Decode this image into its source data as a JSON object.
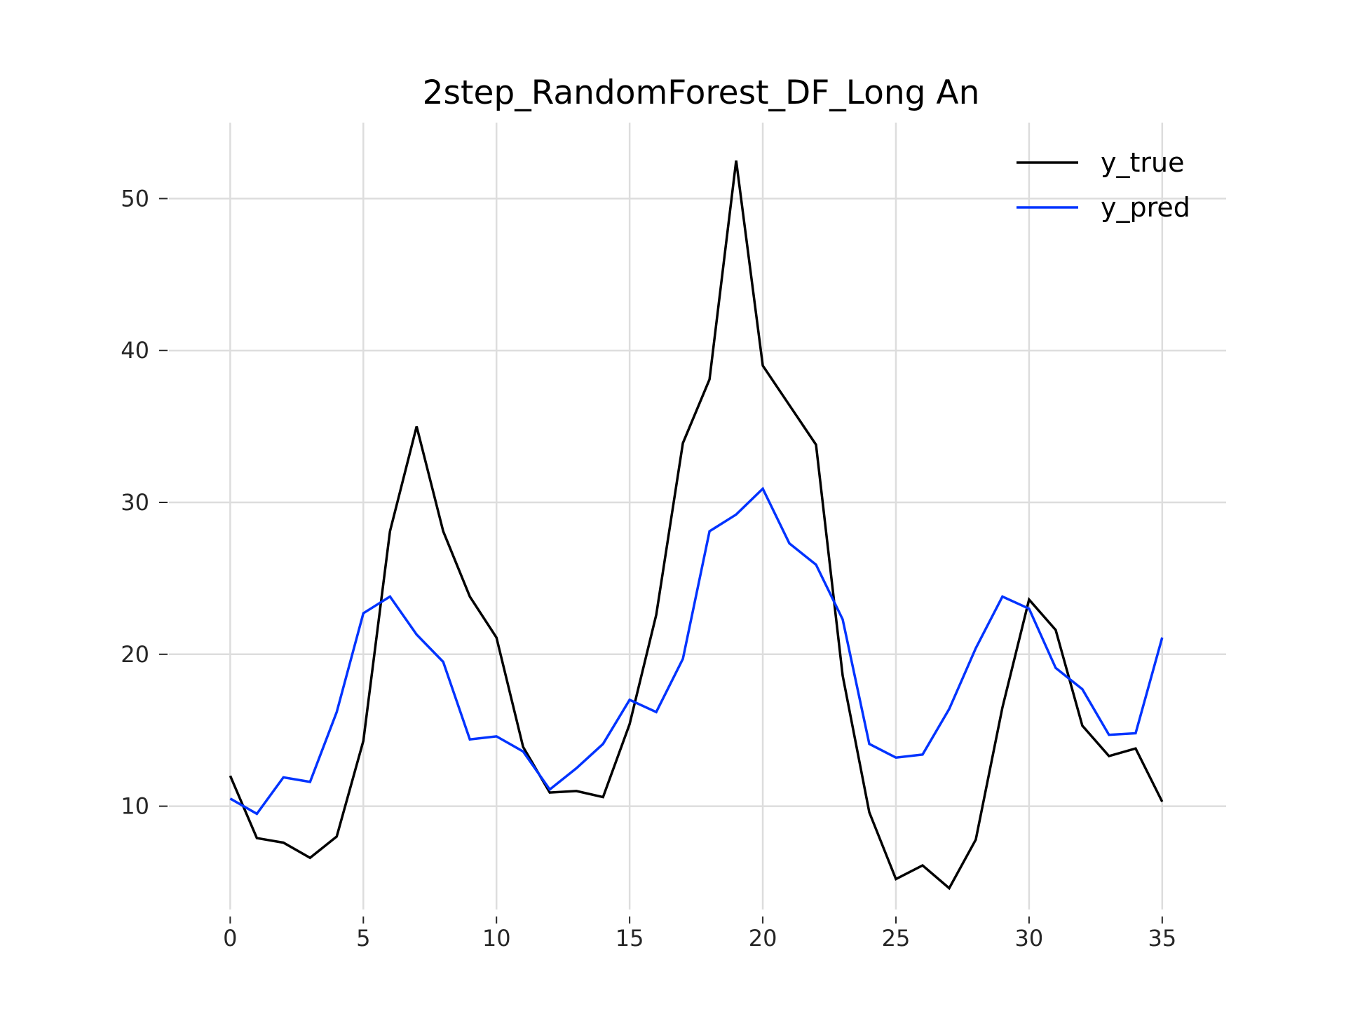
{
  "chart_data": {
    "type": "line",
    "title": "2step_RandomForest_DF_Long An",
    "xlabel": "",
    "ylabel": "",
    "xlim": [
      -2.3,
      37.4
    ],
    "ylim": [
      3.2,
      55
    ],
    "xticks": [
      0,
      5,
      10,
      15,
      20,
      25,
      30,
      35
    ],
    "yticks": [
      10,
      20,
      30,
      40,
      50
    ],
    "grid": true,
    "legend_position": "top-right",
    "x": [
      0,
      1,
      2,
      3,
      4,
      5,
      6,
      7,
      8,
      9,
      10,
      11,
      12,
      13,
      14,
      15,
      16,
      17,
      18,
      19,
      20,
      21,
      22,
      23,
      24,
      25,
      26,
      27,
      28,
      29,
      30,
      31,
      32,
      33,
      34,
      35
    ],
    "series": [
      {
        "name": "y_true",
        "color": "#000000",
        "values": [
          12.0,
          7.9,
          7.6,
          6.6,
          8.0,
          14.3,
          28.1,
          35.0,
          28.1,
          23.8,
          21.1,
          13.9,
          10.9,
          11.0,
          10.6,
          15.4,
          22.6,
          33.9,
          38.1,
          52.5,
          39.0,
          36.4,
          33.8,
          18.6,
          9.6,
          5.2,
          6.1,
          4.6,
          7.8,
          16.5,
          23.6,
          21.6,
          15.3,
          13.3,
          13.8,
          10.3
        ]
      },
      {
        "name": "y_pred",
        "color": "#0033ff",
        "values": [
          10.5,
          9.5,
          11.9,
          11.6,
          16.2,
          22.7,
          23.8,
          21.3,
          19.5,
          14.4,
          14.6,
          13.6,
          11.1,
          12.5,
          14.1,
          17.0,
          16.2,
          19.7,
          28.1,
          29.2,
          30.9,
          27.3,
          25.9,
          22.3,
          14.1,
          13.2,
          13.4,
          16.4,
          20.4,
          23.8,
          23.0,
          19.1,
          17.7,
          14.7,
          14.8,
          21.1
        ]
      }
    ]
  }
}
